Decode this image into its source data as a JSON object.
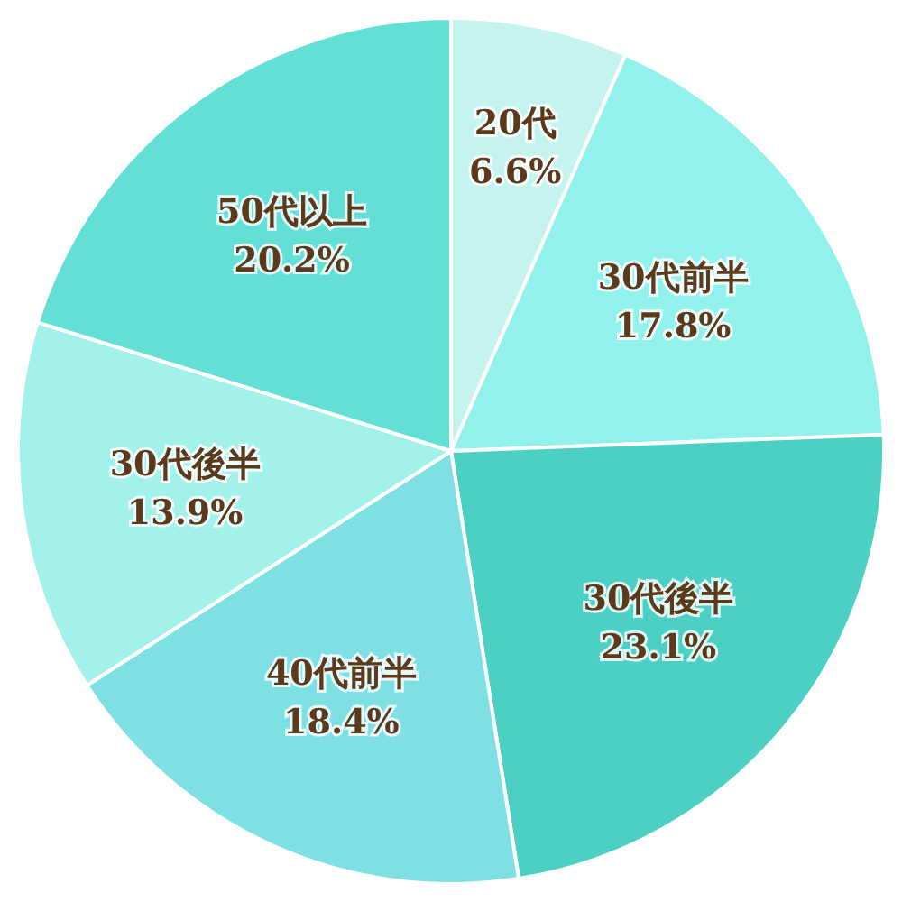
{
  "chart_data": {
    "type": "pie",
    "categories": [
      "20代",
      "30代前半",
      "30代後半",
      "40代前半",
      "30代後半",
      "50代以上"
    ],
    "values": [
      6.6,
      17.8,
      23.1,
      18.4,
      13.9,
      20.2
    ],
    "value_labels": [
      "6.6%",
      "17.8%",
      "23.1%",
      "18.4%",
      "13.9%",
      "20.2%"
    ],
    "colors": [
      "#c5f4ef",
      "#93f1eb",
      "#4dd0c4",
      "#7fe0e4",
      "#a2f1ea",
      "#64dfd5"
    ]
  }
}
